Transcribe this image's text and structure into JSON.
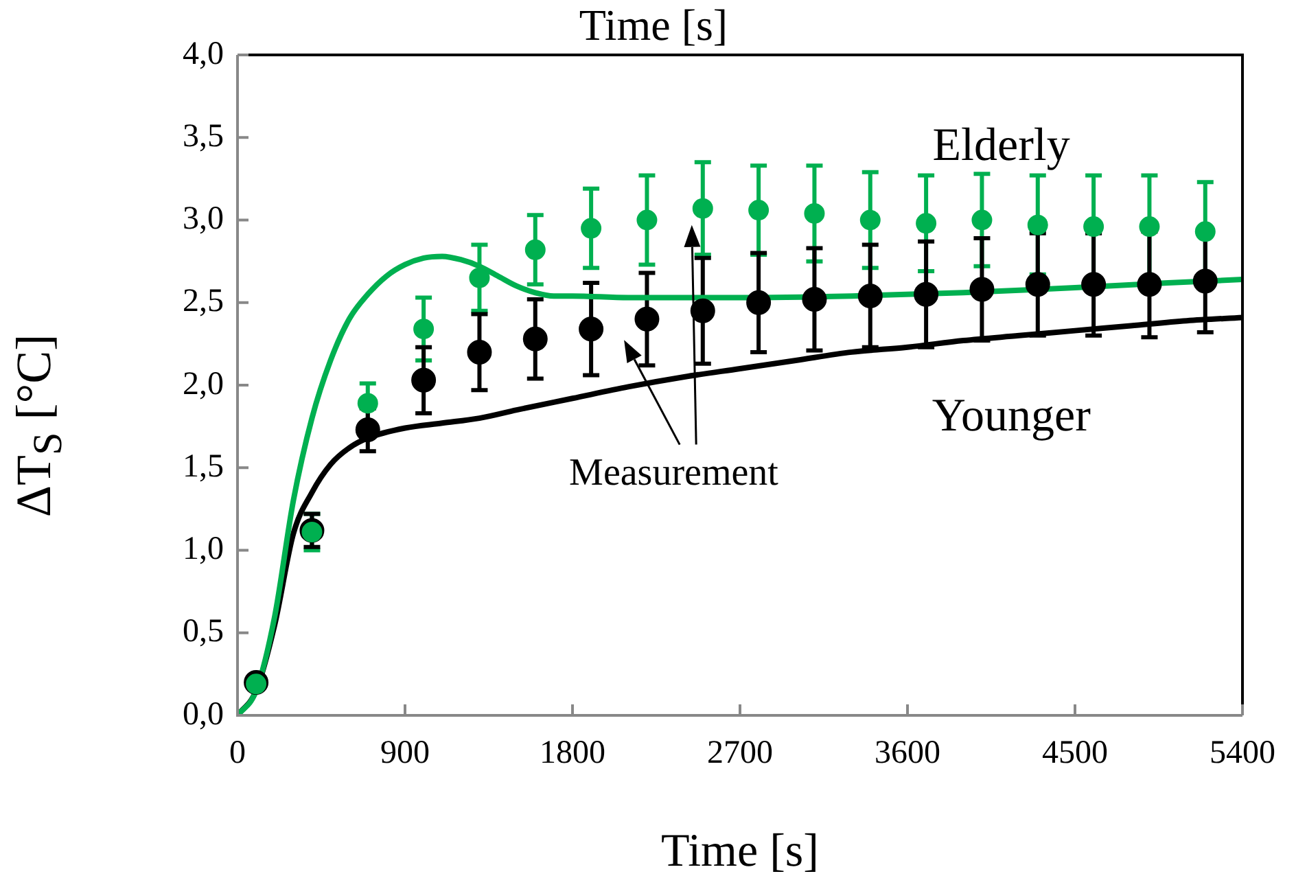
{
  "chart_data": {
    "type": "line",
    "title": "Time [s]",
    "xlabel": "Time [s]",
    "ylabel": "ΔT$_{S}$ [°C]",
    "xlim": [
      0,
      5400
    ],
    "xticks": [
      0,
      900,
      1800,
      2700,
      3600,
      4500,
      5400
    ],
    "ylim": [
      0,
      4
    ],
    "yticks": [
      {
        "value": 0,
        "label": "0,0"
      },
      {
        "value": 0.5,
        "label": "0,5"
      },
      {
        "value": 1,
        "label": "1,0"
      },
      {
        "value": 1.5,
        "label": "1,5"
      },
      {
        "value": 2,
        "label": "2,0"
      },
      {
        "value": 2.5,
        "label": "2,5"
      },
      {
        "value": 3,
        "label": "3,0"
      },
      {
        "value": 3.5,
        "label": "3,5"
      },
      {
        "value": 4,
        "label": "4,0"
      }
    ],
    "grid": false,
    "legend": false,
    "annotations": [
      "Measurement"
    ],
    "series": [
      {
        "name": "Elderly",
        "marker": "none",
        "color": "#00b050",
        "x": [
          0,
          100,
          200,
          300,
          400,
          500,
          600,
          700,
          800,
          900,
          1000,
          1100,
          1200,
          1300,
          1400,
          1500,
          1600,
          1700,
          1800,
          2100,
          2700,
          3300,
          3900,
          4500,
          5000,
          5400
        ],
        "values": [
          0,
          0.15,
          0.6,
          1.3,
          1.8,
          2.15,
          2.4,
          2.55,
          2.66,
          2.73,
          2.77,
          2.78,
          2.76,
          2.72,
          2.66,
          2.6,
          2.56,
          2.54,
          2.54,
          2.53,
          2.53,
          2.54,
          2.56,
          2.59,
          2.62,
          2.64
        ]
      },
      {
        "name": "Younger",
        "marker": "none",
        "color": "#000000",
        "x": [
          0,
          100,
          200,
          300,
          400,
          500,
          600,
          700,
          900,
          1100,
          1300,
          1500,
          1800,
          2100,
          2400,
          2700,
          3000,
          3300,
          3600,
          3900,
          4200,
          4500,
          4800,
          5100,
          5400
        ],
        "values": [
          0,
          0.15,
          0.55,
          1.1,
          1.35,
          1.52,
          1.62,
          1.68,
          1.74,
          1.77,
          1.8,
          1.85,
          1.92,
          1.99,
          2.05,
          2.1,
          2.15,
          2.2,
          2.23,
          2.27,
          2.3,
          2.33,
          2.36,
          2.39,
          2.41
        ]
      },
      {
        "type": "scatter",
        "marker": "circle",
        "color": "#00b050",
        "x": [
          100,
          400,
          700,
          1000,
          1300,
          1600,
          1900,
          2200,
          2500,
          2800,
          3100,
          3400,
          3700,
          4000,
          4300,
          4600,
          4900,
          5200
        ],
        "values": [
          0.19,
          1.11,
          1.89,
          2.34,
          2.65,
          2.82,
          2.95,
          3.0,
          3.07,
          3.06,
          3.04,
          3.0,
          2.98,
          3.0,
          2.97,
          2.96,
          2.96,
          2.93
        ],
        "errors": [
          null,
          0.11,
          0.12,
          0.19,
          0.2,
          0.21,
          0.24,
          0.27,
          0.28,
          0.27,
          0.29,
          0.29,
          0.29,
          0.28,
          0.3,
          0.31,
          0.31,
          0.3
        ]
      },
      {
        "type": "scatter",
        "marker": "circle",
        "color": "#000000",
        "x": [
          100,
          400,
          700,
          1000,
          1300,
          1600,
          1900,
          2200,
          2500,
          2800,
          3100,
          3400,
          3700,
          4000,
          4300,
          4600,
          4900,
          5200
        ],
        "values": [
          0.2,
          1.12,
          1.73,
          2.03,
          2.2,
          2.28,
          2.34,
          2.4,
          2.45,
          2.5,
          2.52,
          2.54,
          2.55,
          2.58,
          2.61,
          2.61,
          2.61,
          2.63
        ],
        "errors": [
          null,
          0.1,
          0.13,
          0.2,
          0.23,
          0.24,
          0.28,
          0.28,
          0.32,
          0.3,
          0.31,
          0.31,
          0.32,
          0.31,
          0.31,
          0.31,
          0.32,
          0.31
        ]
      }
    ]
  }
}
